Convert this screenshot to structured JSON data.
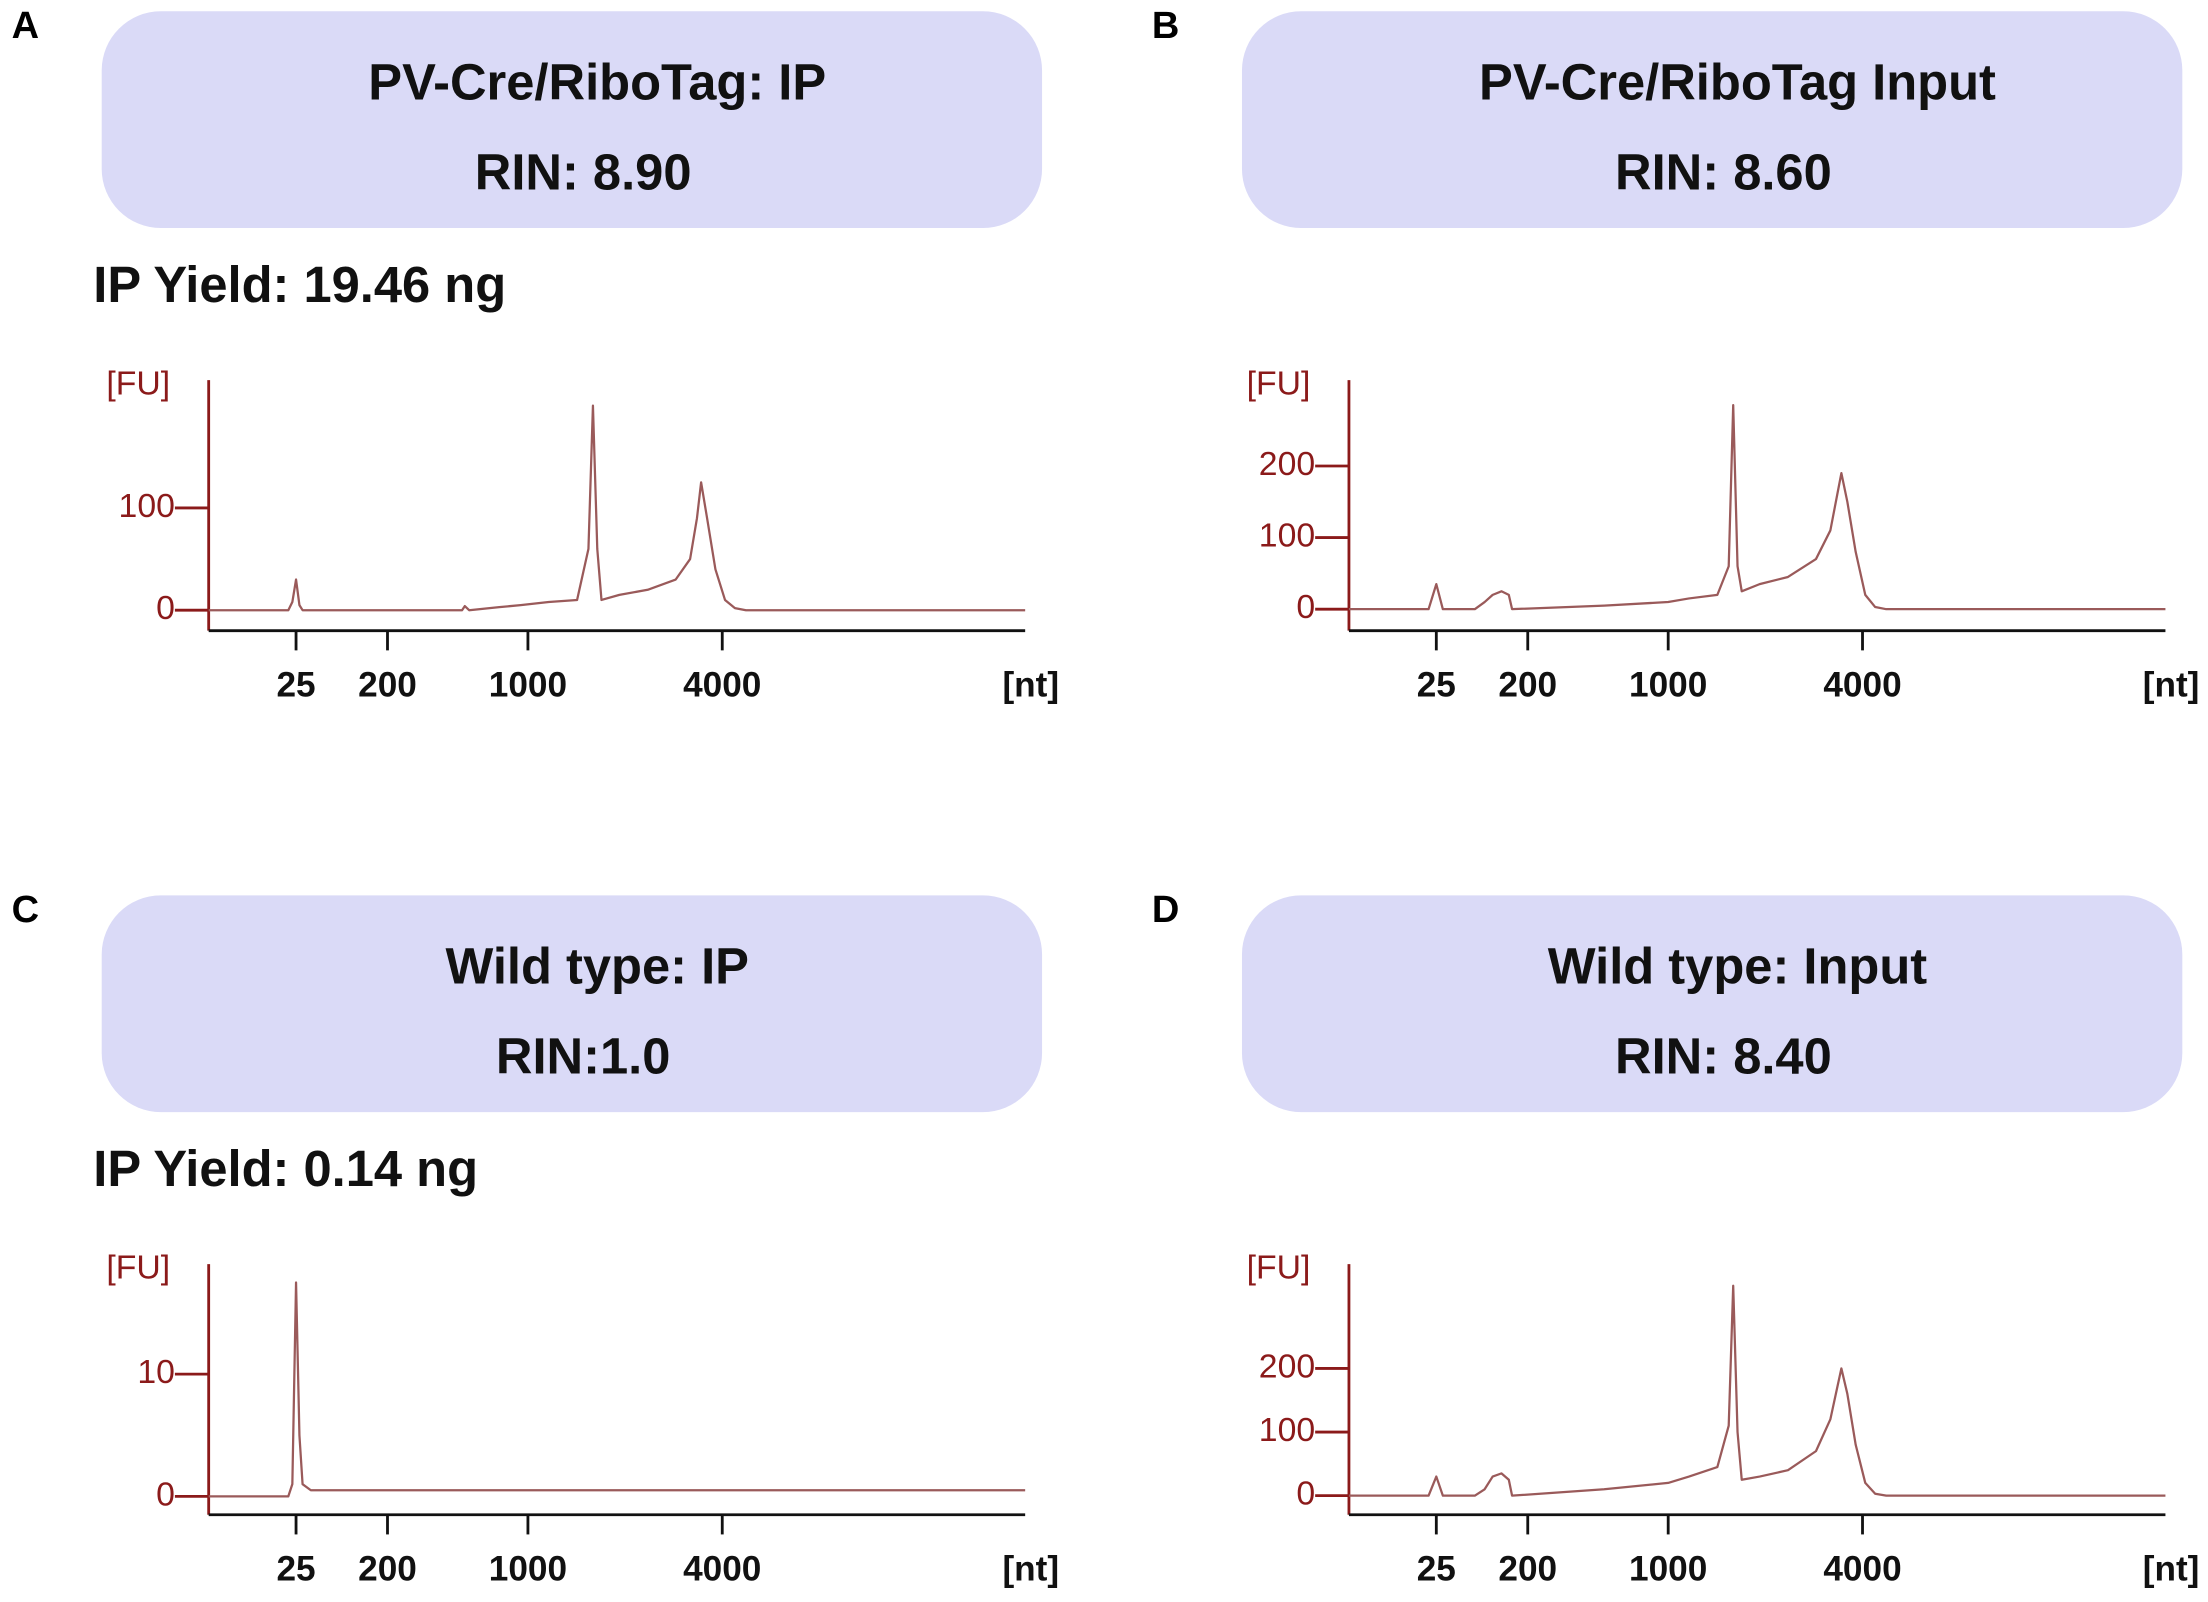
{
  "chart_data": [
    {
      "type": "line",
      "panel": "A",
      "title": "PV-Cre/RiboTag: IP",
      "subtitle": "RIN: 8.90",
      "annotation": "IP Yield: 19.46 ng",
      "ylabel": "[FU]",
      "xlabel": "[nt]",
      "color": "#9a5a5a",
      "axis_color": "#8b1a1a",
      "xlim": [
        3.5,
        35000
      ],
      "xticks": [
        25,
        200,
        1000,
        4000
      ],
      "ylim": [
        -20,
        225
      ],
      "yticks": [
        0,
        100
      ],
      "x": [
        3.5,
        21,
        23,
        25,
        27,
        29,
        470,
        485,
        510,
        720,
        920,
        1160,
        1420,
        1540,
        1590,
        1640,
        1690,
        1920,
        2350,
        2870,
        3180,
        3340,
        3440,
        3590,
        3810,
        4080,
        4380,
        4740,
        35000
      ],
      "values": [
        0,
        0,
        8,
        30,
        5,
        0,
        0,
        4,
        0,
        3,
        5,
        8,
        10,
        60,
        200,
        60,
        10,
        15,
        20,
        30,
        50,
        90,
        125,
        90,
        40,
        10,
        2,
        0,
        0
      ]
    },
    {
      "type": "line",
      "panel": "B",
      "title": "PV-Cre/RiboTag Input",
      "subtitle": "RIN: 8.60",
      "ylabel": "[FU]",
      "xlabel": "[nt]",
      "color": "#9a5a5a",
      "axis_color": "#8b1a1a",
      "xlim": [
        3.5,
        35000
      ],
      "xticks": [
        25,
        200,
        1000,
        4000
      ],
      "ylim": [
        -30,
        320
      ],
      "yticks": [
        0,
        100,
        200
      ],
      "x": [
        3.5,
        21,
        25,
        29,
        60,
        75,
        90,
        110,
        130,
        140,
        480,
        1000,
        1160,
        1420,
        1540,
        1590,
        1640,
        1690,
        1920,
        2350,
        2870,
        3180,
        3340,
        3440,
        3590,
        3810,
        4080,
        4380,
        4740,
        35000
      ],
      "values": [
        0,
        0,
        35,
        0,
        0,
        10,
        20,
        25,
        20,
        0,
        5,
        10,
        15,
        20,
        60,
        285,
        60,
        25,
        35,
        45,
        70,
        110,
        160,
        190,
        150,
        80,
        20,
        3,
        0,
        0
      ]
    },
    {
      "type": "line",
      "panel": "C",
      "title": "Wild type: IP",
      "subtitle": "RIN:1.0",
      "annotation": "IP Yield: 0.14 ng",
      "ylabel": "[FU]",
      "xlabel": "[nt]",
      "color": "#9a5a5a",
      "axis_color": "#8b1a1a",
      "xlim": [
        3.5,
        35000
      ],
      "xticks": [
        25,
        200,
        1000,
        4000
      ],
      "ylim": [
        -1.5,
        19
      ],
      "yticks": [
        0,
        10
      ],
      "x": [
        3.5,
        15,
        21,
        23,
        25,
        27,
        29,
        35,
        100,
        200,
        1000,
        4000,
        35000
      ],
      "values": [
        0,
        0,
        0,
        1,
        17.5,
        5,
        1,
        0.5,
        0.5,
        0.5,
        0.5,
        0.5,
        0.5
      ]
    },
    {
      "type": "line",
      "panel": "D",
      "title": "Wild type: Input",
      "subtitle": "RIN: 8.40",
      "ylabel": "[FU]",
      "xlabel": "[nt]",
      "color": "#9a5a5a",
      "axis_color": "#8b1a1a",
      "xlim": [
        3.5,
        35000
      ],
      "xticks": [
        25,
        200,
        1000,
        4000
      ],
      "ylim": [
        -30,
        364
      ],
      "yticks": [
        0,
        100,
        200
      ],
      "x": [
        3.5,
        21,
        25,
        29,
        60,
        75,
        90,
        110,
        130,
        140,
        480,
        1000,
        1160,
        1420,
        1540,
        1590,
        1640,
        1690,
        1920,
        2350,
        2870,
        3180,
        3340,
        3440,
        3590,
        3810,
        4080,
        4380,
        4740,
        35000
      ],
      "values": [
        0,
        0,
        30,
        0,
        0,
        10,
        30,
        35,
        25,
        0,
        10,
        20,
        30,
        45,
        110,
        330,
        100,
        25,
        30,
        40,
        70,
        120,
        170,
        200,
        160,
        80,
        20,
        3,
        0,
        0
      ]
    }
  ]
}
